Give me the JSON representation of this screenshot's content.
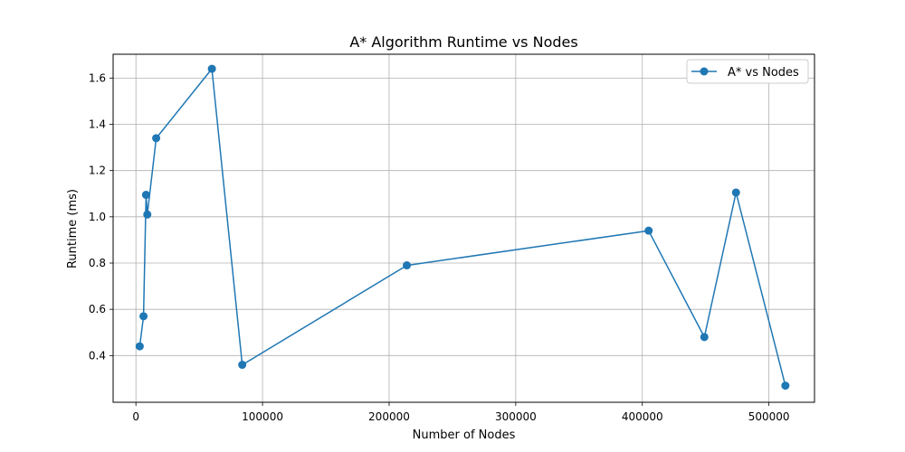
{
  "chart_data": {
    "type": "line",
    "title": "A* Algorithm Runtime vs Nodes",
    "xlabel": "Number of Nodes",
    "ylabel": "Runtime (ms)",
    "xlim": [
      -18000,
      536000
    ],
    "ylim": [
      0.198,
      1.703
    ],
    "xticks": [
      0,
      100000,
      200000,
      300000,
      400000,
      500000
    ],
    "xtick_labels": [
      "0",
      "100000",
      "200000",
      "300000",
      "400000",
      "500000"
    ],
    "yticks": [
      0.4,
      0.6,
      0.8,
      1.0,
      1.2,
      1.4,
      1.6
    ],
    "ytick_labels": [
      "0.4",
      "0.6",
      "0.8",
      "1.0",
      "1.2",
      "1.4",
      "1.6"
    ],
    "grid": true,
    "legend_position": "top-right",
    "series": [
      {
        "name": "A* vs Nodes",
        "color": "#1f77b4",
        "marker": "circle",
        "x": [
          3000,
          6000,
          8000,
          9000,
          16000,
          60000,
          84000,
          214000,
          405000,
          449000,
          474000,
          513000
        ],
        "y": [
          0.44,
          0.57,
          1.095,
          1.01,
          1.34,
          1.64,
          0.36,
          0.79,
          0.94,
          0.48,
          1.105,
          0.27
        ]
      }
    ]
  }
}
